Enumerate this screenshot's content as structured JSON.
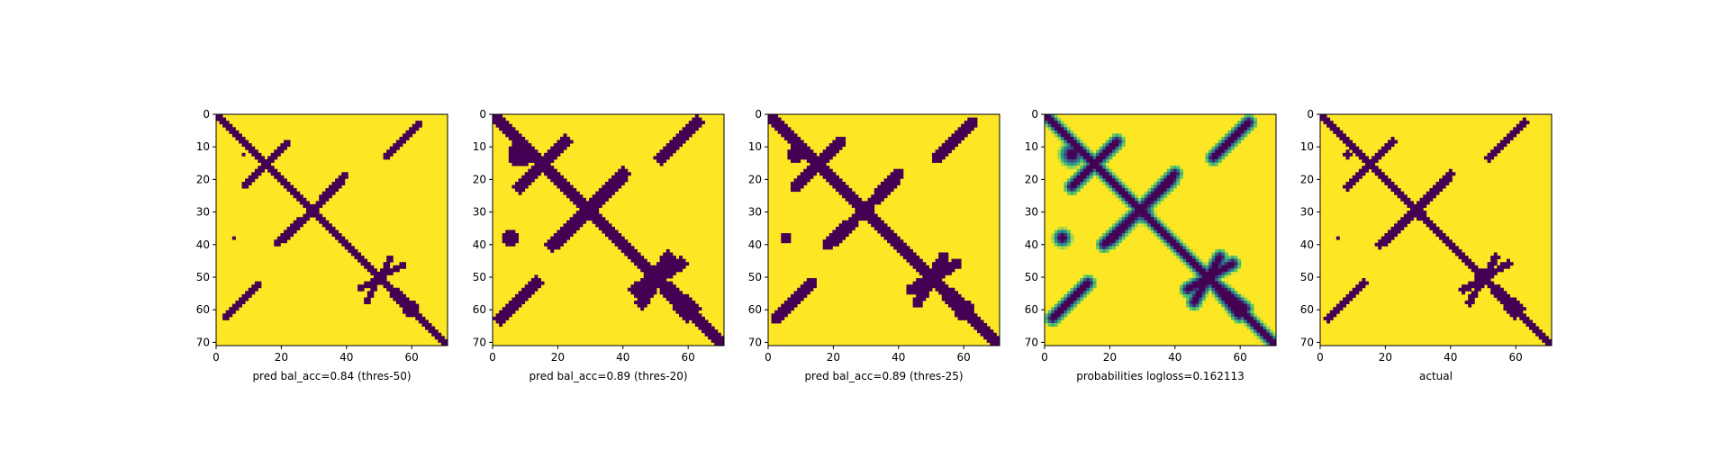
{
  "figure": {
    "background": "#ffffff"
  },
  "colormap": {
    "name": "viridis",
    "low": "#440154",
    "mid": "#21918c",
    "high": "#fde725"
  },
  "chart_data": [
    {
      "type": "heatmap",
      "xlabel": "pred bal_acc=0.84 (thres-50)",
      "matrix_size": 72,
      "xlim": [
        0,
        71
      ],
      "ylim": [
        71,
        0
      ],
      "xticks": [
        0,
        20,
        40,
        60
      ],
      "yticks": [
        0,
        10,
        20,
        30,
        40,
        50,
        60,
        70
      ],
      "variant": "binary_threshold_50",
      "value_range": [
        0,
        1
      ]
    },
    {
      "type": "heatmap",
      "xlabel": "pred bal_acc=0.89 (thres-20)",
      "matrix_size": 72,
      "xlim": [
        0,
        71
      ],
      "ylim": [
        71,
        0
      ],
      "xticks": [
        0,
        20,
        40,
        60
      ],
      "yticks": [
        0,
        10,
        20,
        30,
        40,
        50,
        60,
        70
      ],
      "variant": "binary_threshold_20",
      "value_range": [
        0,
        1
      ]
    },
    {
      "type": "heatmap",
      "xlabel": "pred bal_acc=0.89 (thres-25)",
      "matrix_size": 72,
      "xlim": [
        0,
        71
      ],
      "ylim": [
        71,
        0
      ],
      "xticks": [
        0,
        20,
        40,
        60
      ],
      "yticks": [
        0,
        10,
        20,
        30,
        40,
        50,
        60,
        70
      ],
      "variant": "binary_threshold_25",
      "value_range": [
        0,
        1
      ]
    },
    {
      "type": "heatmap",
      "xlabel": "probabilities logloss=0.162113",
      "matrix_size": 72,
      "xlim": [
        0,
        71
      ],
      "ylim": [
        71,
        0
      ],
      "xticks": [
        0,
        20,
        40,
        60
      ],
      "yticks": [
        0,
        10,
        20,
        30,
        40,
        50,
        60,
        70
      ],
      "variant": "continuous_probabilities",
      "value_range": [
        0,
        1
      ]
    },
    {
      "type": "heatmap",
      "xlabel": "actual",
      "matrix_size": 72,
      "xlim": [
        0,
        71
      ],
      "ylim": [
        71,
        0
      ],
      "xticks": [
        0,
        20,
        40,
        60
      ],
      "yticks": [
        0,
        10,
        20,
        30,
        40,
        50,
        60,
        70
      ],
      "variant": "ground_truth",
      "value_range": [
        0,
        1
      ]
    }
  ]
}
